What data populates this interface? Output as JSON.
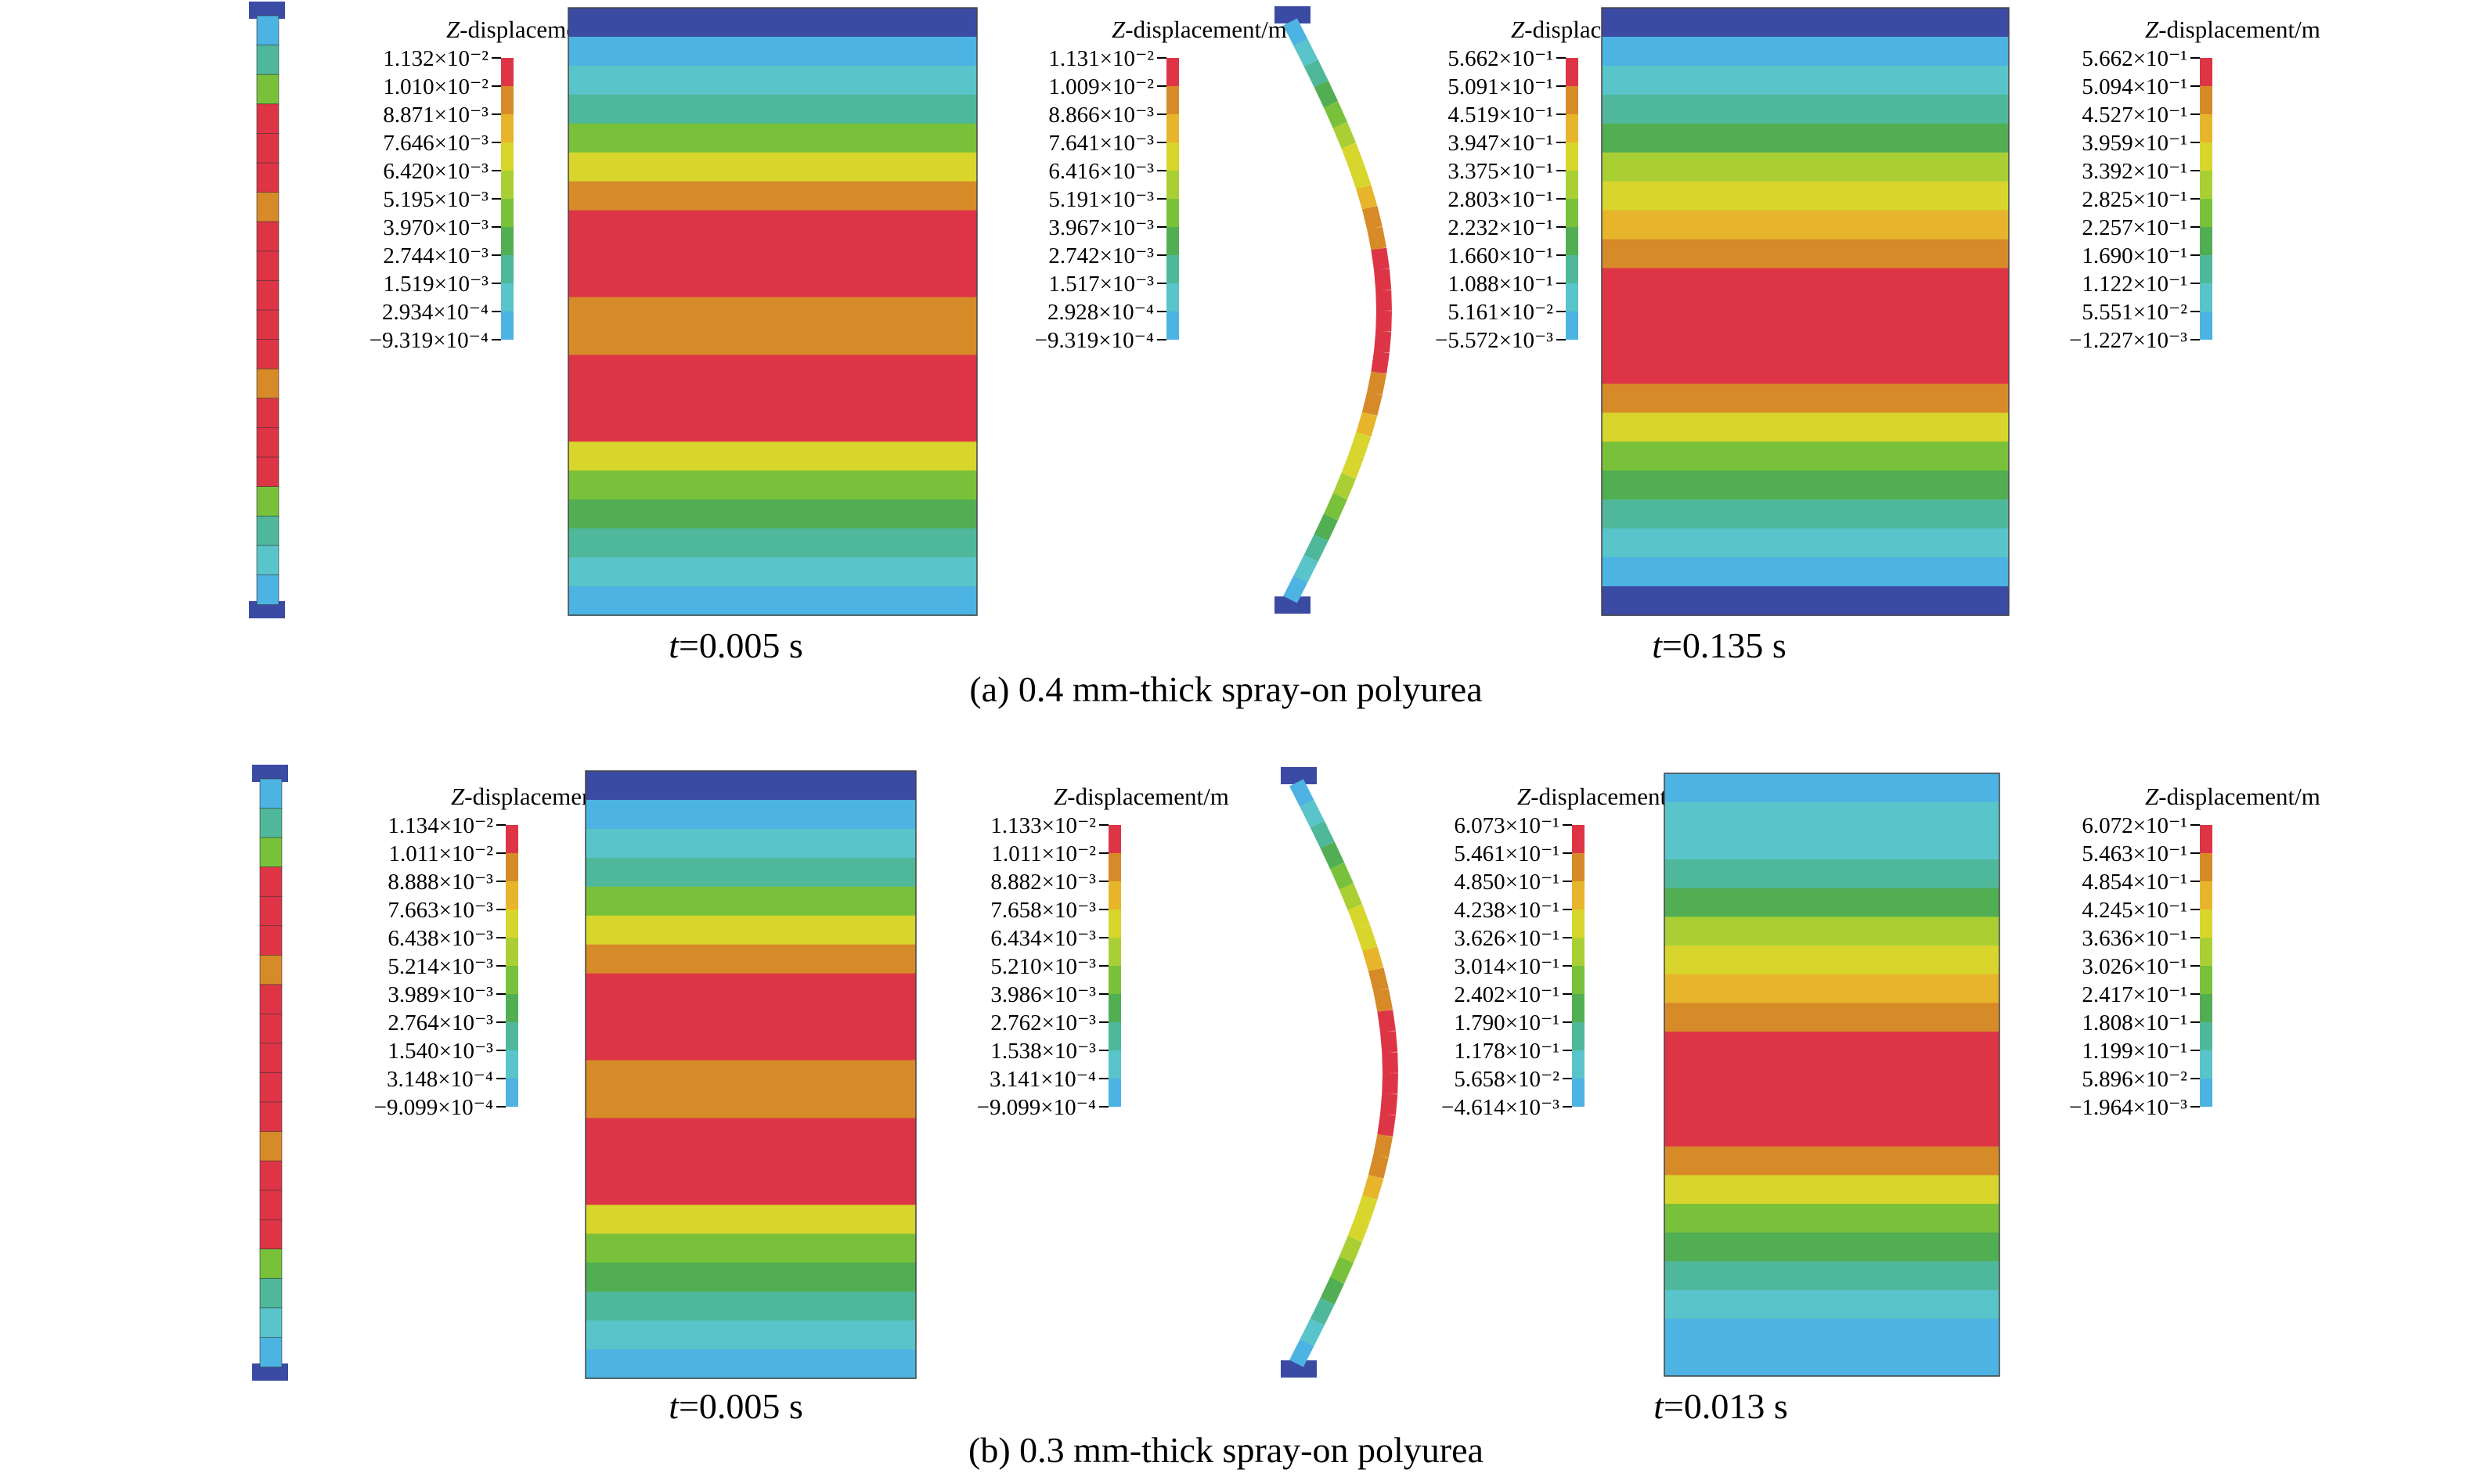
{
  "colormap": [
    "#3b4ba3",
    "#4cb3e2",
    "#59c4c9",
    "#4fb89a",
    "#52ae52",
    "#79c13b",
    "#a9cf35",
    "#d8d52c",
    "#e6b52c",
    "#d78a28",
    "#dd3546"
  ],
  "legend_title": {
    "italic": "Z",
    "rest": "-displacement/m"
  },
  "rows": [
    {
      "caption": "(a) 0.4 mm-thick spray-on polyurea",
      "snapshots": [
        {
          "time_label": {
            "italic": "t",
            "rest": "=0.005 s"
          },
          "side_view_legend": [
            "1.132×10⁻²",
            "1.010×10⁻²",
            "8.871×10⁻³",
            "7.646×10⁻³",
            "6.420×10⁻³",
            "5.195×10⁻³",
            "3.970×10⁻³",
            "2.744×10⁻³",
            "1.519×10⁻³",
            "2.934×10⁻⁴",
            "−9.319×10⁻⁴"
          ],
          "face_view_legend": [
            "1.131×10⁻²",
            "1.009×10⁻²",
            "8.866×10⁻³",
            "7.641×10⁻³",
            "6.416×10⁻³",
            "5.191×10⁻³",
            "3.967×10⁻³",
            "2.742×10⁻³",
            "1.517×10⁻³",
            "2.928×10⁻⁴",
            "−9.319×10⁻⁴"
          ],
          "face_bands": [
            0,
            1,
            2,
            3,
            5,
            7,
            9,
            10,
            10,
            10,
            9,
            9,
            10,
            10,
            10,
            7,
            5,
            4,
            3,
            2,
            1
          ]
        },
        {
          "time_label": {
            "italic": "t",
            "rest": "=0.135 s"
          },
          "side_view_legend": [
            "5.662×10⁻¹",
            "5.091×10⁻¹",
            "4.519×10⁻¹",
            "3.947×10⁻¹",
            "3.375×10⁻¹",
            "2.803×10⁻¹",
            "2.232×10⁻¹",
            "1.660×10⁻¹",
            "1.088×10⁻¹",
            "5.161×10⁻²",
            "−5.572×10⁻³"
          ],
          "face_view_legend": [
            "5.662×10⁻¹",
            "5.094×10⁻¹",
            "4.527×10⁻¹",
            "3.959×10⁻¹",
            "3.392×10⁻¹",
            "2.825×10⁻¹",
            "2.257×10⁻¹",
            "1.690×10⁻¹",
            "1.122×10⁻¹",
            "5.551×10⁻²",
            "−1.227×10⁻³"
          ],
          "face_bands": [
            0,
            1,
            2,
            3,
            4,
            6,
            7,
            8,
            9,
            10,
            10,
            10,
            10,
            9,
            7,
            5,
            4,
            3,
            2,
            1,
            0
          ]
        }
      ]
    },
    {
      "caption": "(b) 0.3 mm-thick spray-on polyurea",
      "snapshots": [
        {
          "time_label": {
            "italic": "t",
            "rest": "=0.005 s"
          },
          "side_view_legend": [
            "1.134×10⁻²",
            "1.011×10⁻²",
            "8.888×10⁻³",
            "7.663×10⁻³",
            "6.438×10⁻³",
            "5.214×10⁻³",
            "3.989×10⁻³",
            "2.764×10⁻³",
            "1.540×10⁻³",
            "3.148×10⁻⁴",
            "−9.099×10⁻⁴"
          ],
          "face_view_legend": [
            "1.133×10⁻²",
            "1.011×10⁻²",
            "8.882×10⁻³",
            "7.658×10⁻³",
            "6.434×10⁻³",
            "5.210×10⁻³",
            "3.986×10⁻³",
            "2.762×10⁻³",
            "1.538×10⁻³",
            "3.141×10⁻⁴",
            "−9.099×10⁻⁴"
          ],
          "face_bands": [
            0,
            1,
            2,
            3,
            5,
            7,
            9,
            10,
            10,
            10,
            9,
            9,
            10,
            10,
            10,
            7,
            5,
            4,
            3,
            2,
            1
          ]
        },
        {
          "time_label": {
            "italic": "t",
            "rest": "=0.013 s"
          },
          "side_view_legend": [
            "6.073×10⁻¹",
            "5.461×10⁻¹",
            "4.850×10⁻¹",
            "4.238×10⁻¹",
            "3.626×10⁻¹",
            "3.014×10⁻¹",
            "2.402×10⁻¹",
            "1.790×10⁻¹",
            "1.178×10⁻¹",
            "5.658×10⁻²",
            "−4.614×10⁻³"
          ],
          "face_view_legend": [
            "6.072×10⁻¹",
            "5.463×10⁻¹",
            "4.854×10⁻¹",
            "4.245×10⁻¹",
            "3.636×10⁻¹",
            "3.026×10⁻¹",
            "2.417×10⁻¹",
            "1.808×10⁻¹",
            "1.199×10⁻¹",
            "5.896×10⁻²",
            "−1.964×10⁻³"
          ],
          "face_bands": [
            1,
            2,
            2,
            3,
            4,
            6,
            7,
            8,
            9,
            10,
            10,
            10,
            10,
            9,
            7,
            5,
            4,
            3,
            2,
            1,
            1
          ]
        }
      ]
    }
  ]
}
